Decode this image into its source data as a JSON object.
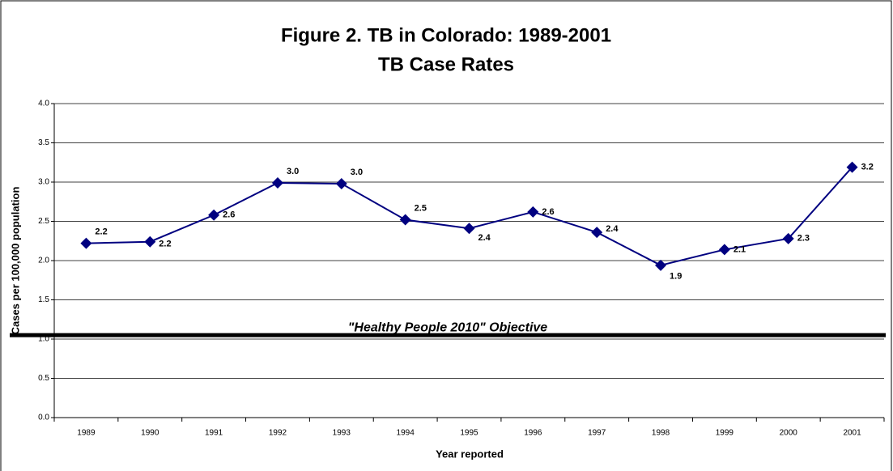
{
  "chart_data": {
    "type": "line",
    "title": "Figure 2.  TB in Colorado:  1989-2001",
    "subtitle": "TB Case Rates",
    "x_label": "Year reported",
    "y_label": "Cases per 100,000 population",
    "categories": [
      "1989",
      "1990",
      "1991",
      "1992",
      "1993",
      "1994",
      "1995",
      "1996",
      "1997",
      "1998",
      "1999",
      "2000",
      "2001"
    ],
    "series": [
      {
        "name": "TB Case Rate",
        "color": "#000080",
        "values": [
          2.22,
          2.24,
          2.58,
          2.99,
          2.98,
          2.52,
          2.41,
          2.62,
          2.36,
          1.94,
          2.14,
          2.28,
          3.19
        ],
        "value_labels": [
          "2.2",
          "2.2",
          "2.6",
          "3.0",
          "3.0",
          "2.5",
          "2.4",
          "2.6",
          "2.4",
          "1.9",
          "2.1",
          "2.3",
          "3.2"
        ]
      }
    ],
    "ylim": [
      0,
      4
    ],
    "yticks": [
      {
        "value": 0,
        "label": "0.0"
      },
      0.5,
      {
        "value": 1,
        "label": "1.0"
      },
      1.5,
      {
        "value": 2,
        "label": "2.0"
      },
      2.5,
      {
        "value": 3,
        "label": "3.0"
      },
      3.5,
      {
        "value": 4,
        "label": "4.0"
      }
    ],
    "grid": true,
    "reference_line": {
      "text": "\"Healthy People 2010\" Objective",
      "value": 1.05
    }
  }
}
